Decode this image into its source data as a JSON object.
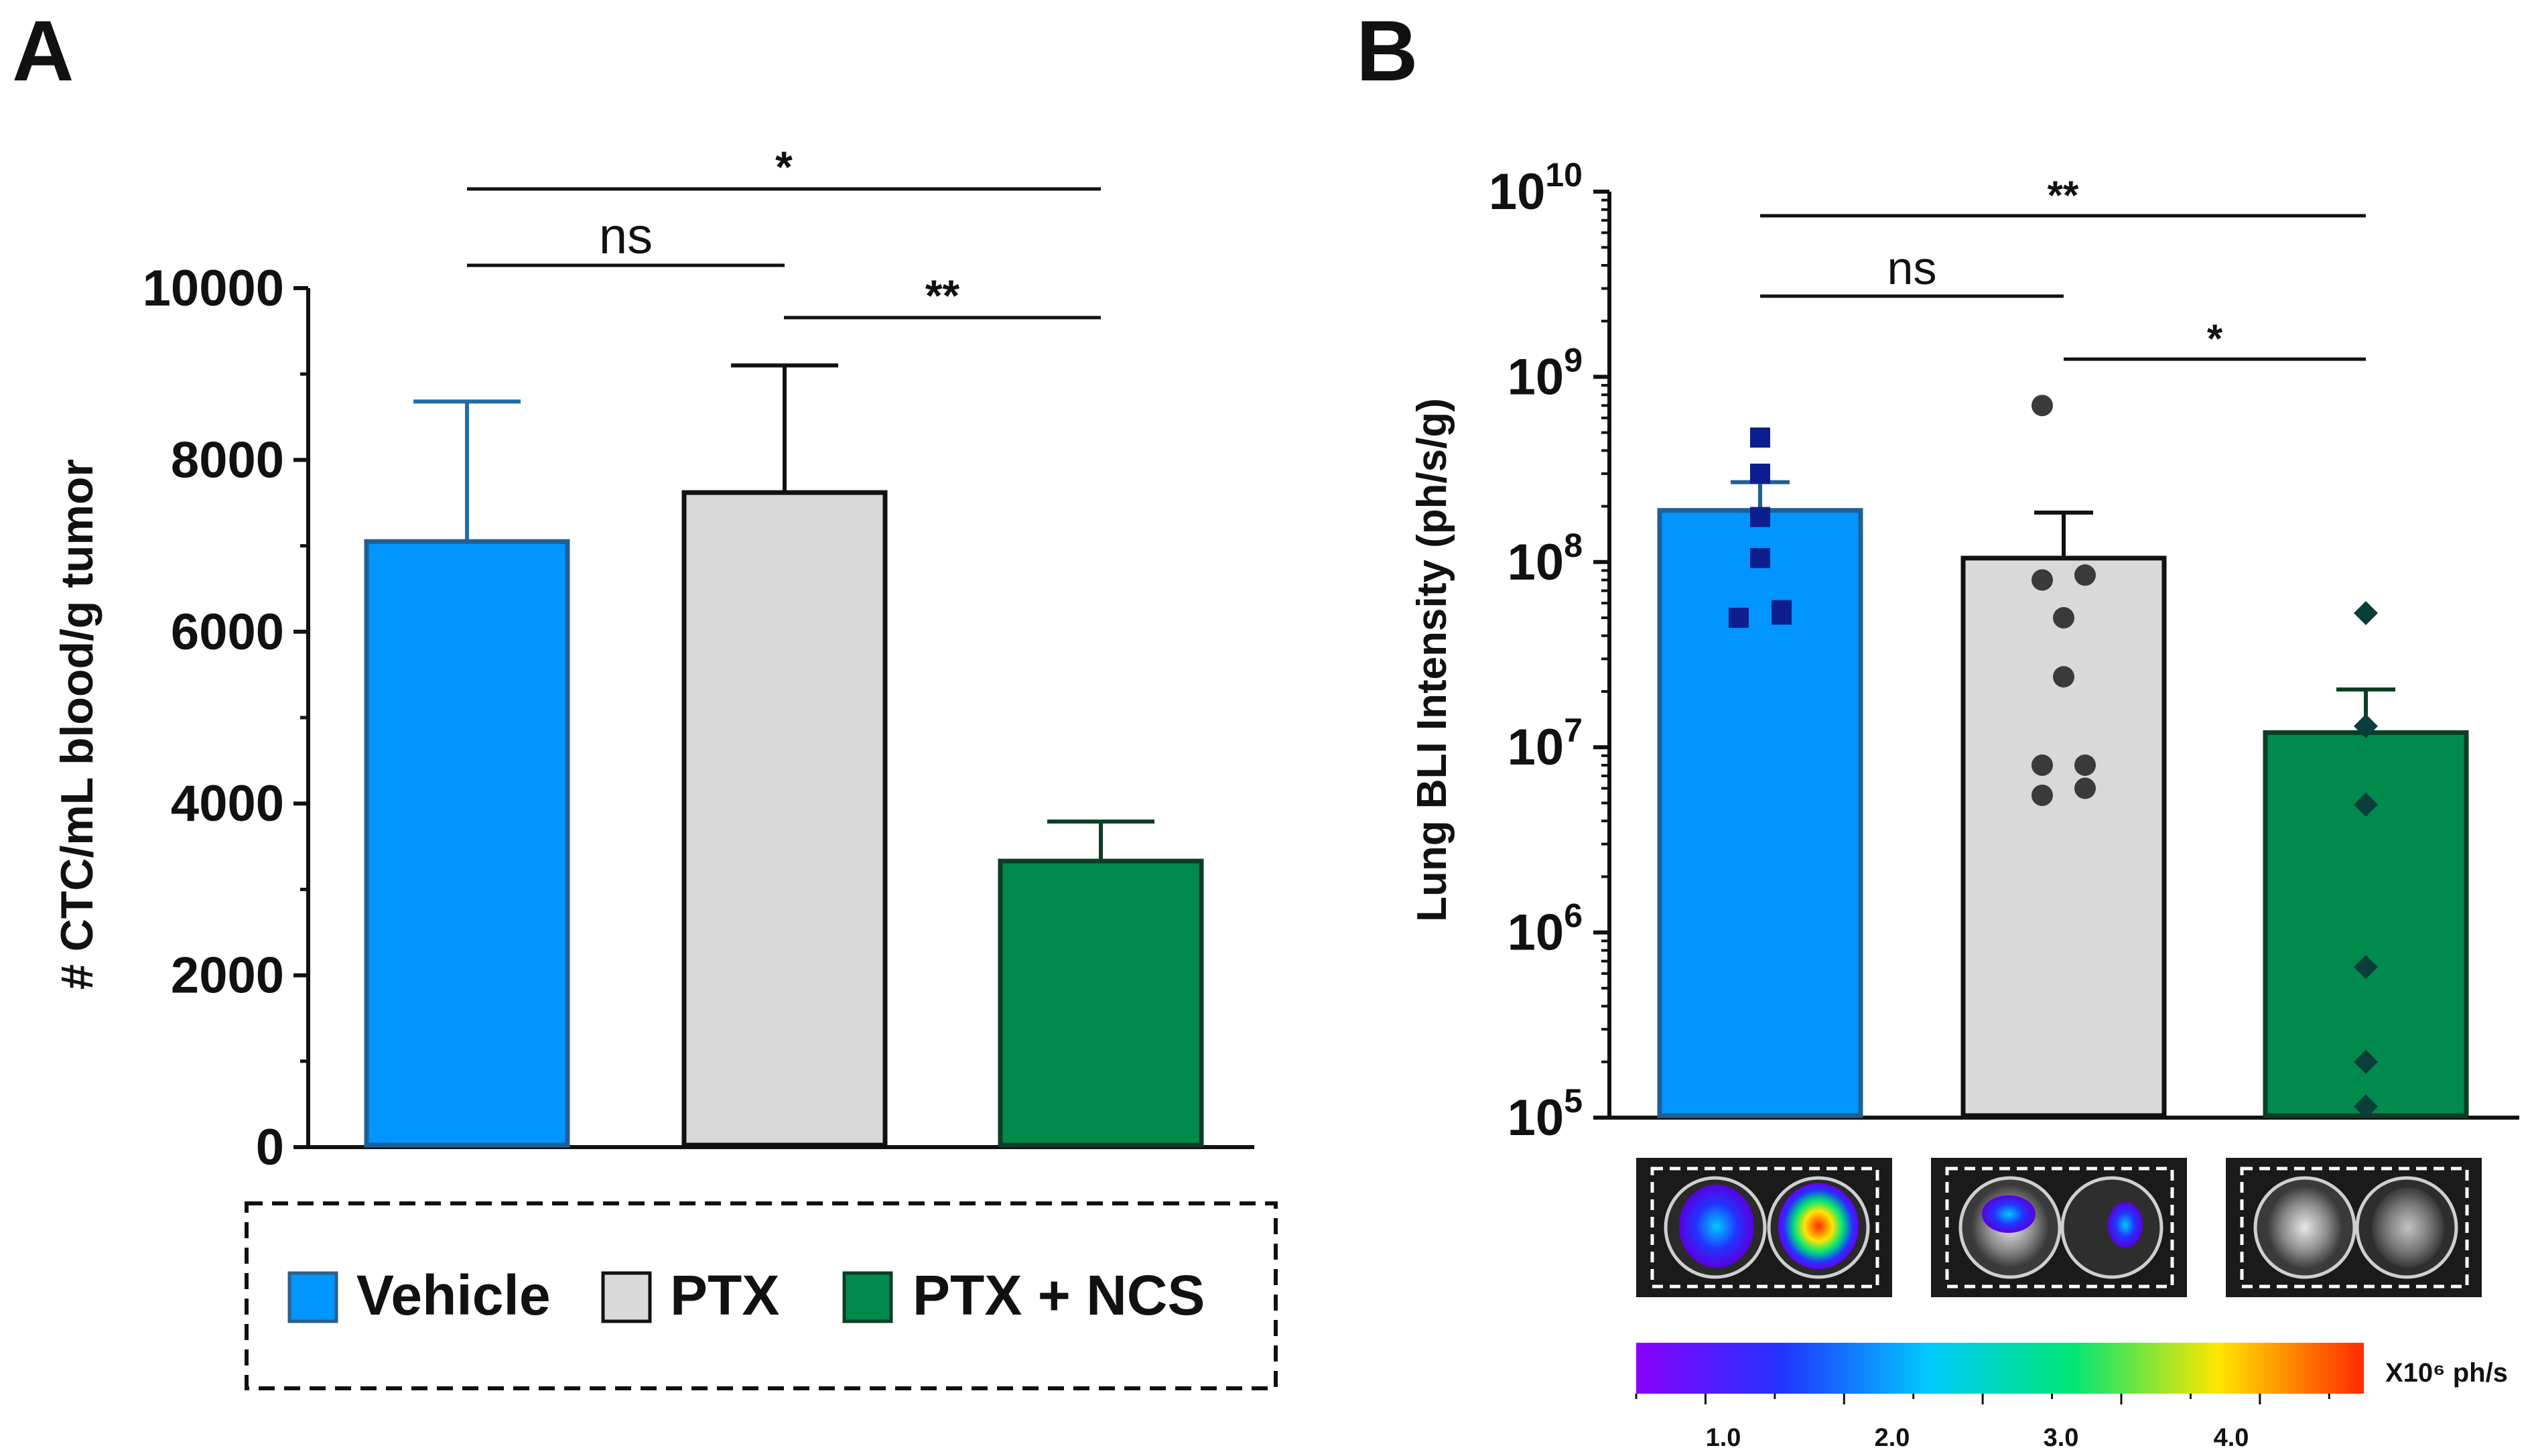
{
  "colors": {
    "vehicle": "#0095ff",
    "ptx": "#d9d9d9",
    "ptx_ncs": "#008a4b",
    "vehicle_points": "#0d1f8f",
    "ptx_points": "#3a3a3a",
    "ptx_ncs_points": "#0b3d3a",
    "vehicle_error": "#1f6ea8"
  },
  "panel_a": {
    "label": "A",
    "legend": {
      "entries": [
        "Vehicle",
        "PTX",
        "PTX + NCS"
      ],
      "style": "dashed-box"
    }
  },
  "panel_b": {
    "label": "B",
    "images": {
      "groups": [
        "Vehicle",
        "PTX",
        "PTX + NCS"
      ],
      "description": "bioluminescence lung images"
    },
    "colorbar": {
      "unit": "X10⁶ ph/s",
      "ticks": [
        "1.0",
        "2.0",
        "3.0",
        "4.0"
      ],
      "gradient": [
        "#8b00ff",
        "#2233ff",
        "#00c8ff",
        "#00e676",
        "#ffe600",
        "#ff2a00"
      ]
    }
  },
  "chart_data": [
    {
      "type": "bar",
      "panel": "A",
      "categories": [
        "Vehicle",
        "PTX",
        "PTX + NCS"
      ],
      "values": [
        7050,
        7620,
        3330
      ],
      "error_upper": [
        8680,
        9100,
        3790
      ],
      "ylabel": "# CTC/mL blood/g tumor",
      "ylim": [
        0,
        10000
      ],
      "yticks": [
        0,
        2000,
        4000,
        6000,
        8000,
        10000
      ],
      "ytick_labels": [
        "0",
        "2000",
        "4000",
        "6000",
        "8000",
        "10000"
      ],
      "significance": [
        {
          "from": 0,
          "to": 2,
          "label": "*"
        },
        {
          "from": 0,
          "to": 1,
          "label": "ns"
        },
        {
          "from": 1,
          "to": 2,
          "label": "**"
        }
      ]
    },
    {
      "type": "bar",
      "panel": "B",
      "scale": "log",
      "categories": [
        "Vehicle",
        "PTX",
        "PTX + NCS"
      ],
      "values": [
        190000000.0,
        105000000.0,
        12000000.0
      ],
      "error_upper": [
        270000000.0,
        185000000.0,
        20500000.0
      ],
      "points": [
        {
          "marker": "square",
          "y": [
            470000000.0,
            300000000.0,
            175000000.0,
            105000000.0,
            55000000.0,
            50000000.0,
            52000000.0
          ],
          "x_offset": [
            0,
            0,
            0,
            0,
            0.4,
            -0.4,
            0.4
          ]
        },
        {
          "marker": "circle",
          "y": [
            700000000.0,
            85000000.0,
            80000000.0,
            50000000.0,
            24000000.0,
            8000000.0,
            8000000.0,
            5500000.0,
            6000000.0
          ],
          "x_offset": [
            -0.4,
            0.4,
            -0.4,
            0,
            0,
            -0.4,
            0.4,
            -0.4,
            0.4
          ]
        },
        {
          "marker": "diamond",
          "y": [
            53000000.0,
            13000000.0,
            4900000.0,
            650000.0,
            200000.0,
            115000.0
          ],
          "x_offset": [
            0,
            0,
            0,
            0,
            0,
            0
          ]
        }
      ],
      "ylabel": "Lung BLI Intensity (ph/s/g)",
      "ylim": [
        100000.0,
        10000000000.0
      ],
      "ytick_exponents": [
        5,
        6,
        7,
        8,
        9,
        10
      ],
      "ytick_base": "10",
      "significance": [
        {
          "from": 0,
          "to": 2,
          "label": "**"
        },
        {
          "from": 0,
          "to": 1,
          "label": "ns"
        },
        {
          "from": 1,
          "to": 2,
          "label": "*"
        }
      ]
    }
  ]
}
